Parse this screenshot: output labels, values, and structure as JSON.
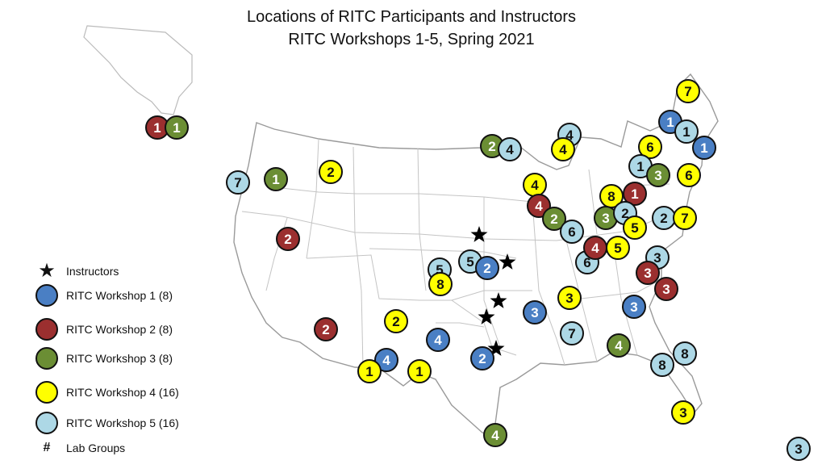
{
  "title": {
    "line1": "Locations of RITC Participants and Instructors",
    "line2": "RITC Workshops 1-5, Spring 2021"
  },
  "colors": {
    "w1": "#4a7fc4",
    "w2": "#9b2f2f",
    "w3": "#6b8e34",
    "w4": "#ffff00",
    "w5": "#add8e6"
  },
  "legend": {
    "instructors": "Instructors",
    "w1": "RITC Workshop 1 (8)",
    "w2": "RITC Workshop 2 (8)",
    "w3": "RITC Workshop 3 (8)",
    "w4": "RITC Workshop 4 (16)",
    "w5": "RITC Workshop 5 (16)",
    "lab_symbol": "#",
    "lab": "Lab Groups"
  },
  "markers": [
    {
      "label": "1",
      "workshop": "w2"
    },
    {
      "label": "1",
      "workshop": "w3"
    },
    {
      "label": "7",
      "workshop": "w5"
    },
    {
      "label": "1",
      "workshop": "w3"
    },
    {
      "label": "2",
      "workshop": "w4"
    },
    {
      "label": "2",
      "workshop": "w2"
    },
    {
      "label": "2",
      "workshop": "w2"
    },
    {
      "label": "2",
      "workshop": "w4"
    },
    {
      "label": "4",
      "workshop": "w1"
    },
    {
      "label": "1",
      "workshop": "w4"
    },
    {
      "label": "1",
      "workshop": "w4"
    },
    {
      "label": "4",
      "workshop": "w1"
    },
    {
      "label": "5",
      "workshop": "w5"
    },
    {
      "label": "8",
      "workshop": "w4"
    },
    {
      "label": "5",
      "workshop": "w5"
    },
    {
      "label": "2",
      "workshop": "w1"
    },
    {
      "label": "2",
      "workshop": "w1"
    },
    {
      "label": "4",
      "workshop": "w3"
    },
    {
      "label": "2",
      "workshop": "w3"
    },
    {
      "label": "4",
      "workshop": "w5"
    },
    {
      "label": "4",
      "workshop": "w5"
    },
    {
      "label": "4",
      "workshop": "w4"
    },
    {
      "label": "4",
      "workshop": "w4"
    },
    {
      "label": "4",
      "workshop": "w2"
    },
    {
      "label": "2",
      "workshop": "w3"
    },
    {
      "label": "6",
      "workshop": "w5"
    },
    {
      "label": "6",
      "workshop": "w5"
    },
    {
      "label": "4",
      "workshop": "w2"
    },
    {
      "label": "5",
      "workshop": "w4"
    },
    {
      "label": "3",
      "workshop": "w1"
    },
    {
      "label": "3",
      "workshop": "w4"
    },
    {
      "label": "7",
      "workshop": "w5"
    },
    {
      "label": "4",
      "workshop": "w3"
    },
    {
      "label": "3",
      "workshop": "w1"
    },
    {
      "label": "3",
      "workshop": "w5"
    },
    {
      "label": "3",
      "workshop": "w2"
    },
    {
      "label": "3",
      "workshop": "w2"
    },
    {
      "label": "8",
      "workshop": "w5"
    },
    {
      "label": "8",
      "workshop": "w5"
    },
    {
      "label": "3",
      "workshop": "w4"
    },
    {
      "label": "8",
      "workshop": "w4"
    },
    {
      "label": "1",
      "workshop": "w2"
    },
    {
      "label": "3",
      "workshop": "w3"
    },
    {
      "label": "2",
      "workshop": "w5"
    },
    {
      "label": "5",
      "workshop": "w4"
    },
    {
      "label": "2",
      "workshop": "w5"
    },
    {
      "label": "7",
      "workshop": "w4"
    },
    {
      "label": "6",
      "workshop": "w4"
    },
    {
      "label": "1",
      "workshop": "w5"
    },
    {
      "label": "3",
      "workshop": "w3"
    },
    {
      "label": "6",
      "workshop": "w4"
    },
    {
      "label": "7",
      "workshop": "w4"
    },
    {
      "label": "1",
      "workshop": "w1"
    },
    {
      "label": "1",
      "workshop": "w5"
    },
    {
      "label": "1",
      "workshop": "w1"
    },
    {
      "label": "3",
      "workshop": "w5"
    }
  ],
  "instructor_count": 5
}
